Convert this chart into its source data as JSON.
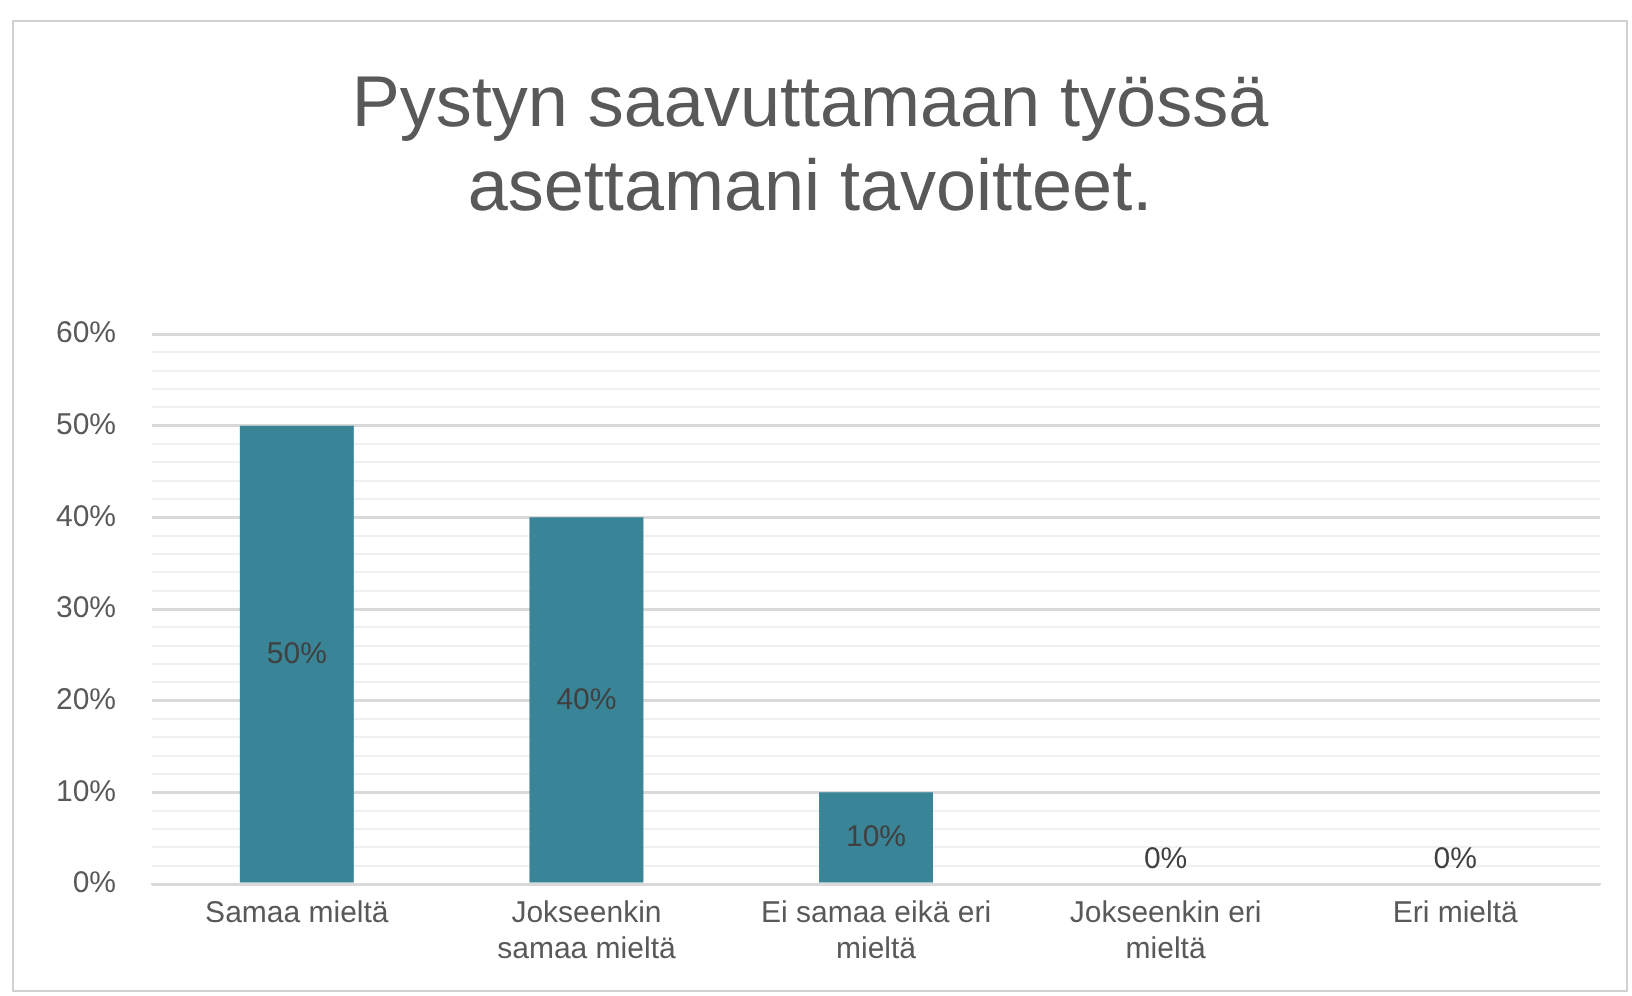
{
  "chart_data": {
    "type": "bar",
    "title": "Pystyn saavuttamaan työssä asettamani tavoitteet.",
    "categories": [
      "Samaa mieltä",
      "Jokseenkin samaa mieltä",
      "Ei samaa eikä eri mieltä",
      "Jokseenkin eri mieltä",
      "Eri mieltä"
    ],
    "values": [
      50,
      40,
      10,
      0,
      0
    ],
    "value_labels": [
      "50%",
      "40%",
      "10%",
      "0%",
      "0%"
    ],
    "color": "#3a8497",
    "ylim": [
      0,
      60
    ],
    "yticks": [
      {
        "value": 0,
        "label": "0%"
      },
      {
        "value": 2,
        "label": null
      },
      {
        "value": 4,
        "label": null
      },
      {
        "value": 6,
        "label": null
      },
      {
        "value": 8,
        "label": null
      },
      {
        "value": 10,
        "label": "10%"
      },
      {
        "value": 12,
        "label": null
      },
      {
        "value": 14,
        "label": null
      },
      {
        "value": 16,
        "label": null
      },
      {
        "value": 18,
        "label": null
      },
      {
        "value": 20,
        "label": "20%"
      },
      {
        "value": 22,
        "label": null
      },
      {
        "value": 24,
        "label": null
      },
      {
        "value": 26,
        "label": null
      },
      {
        "value": 28,
        "label": null
      },
      {
        "value": 30,
        "label": "30%"
      },
      {
        "value": 32,
        "label": null
      },
      {
        "value": 34,
        "label": null
      },
      {
        "value": 36,
        "label": null
      },
      {
        "value": 38,
        "label": null
      },
      {
        "value": 40,
        "label": "40%"
      },
      {
        "value": 42,
        "label": null
      },
      {
        "value": 44,
        "label": null
      },
      {
        "value": 46,
        "label": null
      },
      {
        "value": 48,
        "label": null
      },
      {
        "value": 50,
        "label": "50%"
      },
      {
        "value": 52,
        "label": null
      },
      {
        "value": 54,
        "label": null
      },
      {
        "value": 56,
        "label": null
      },
      {
        "value": 58,
        "label": null
      },
      {
        "value": 60,
        "label": "60%"
      }
    ],
    "grid": "y"
  }
}
